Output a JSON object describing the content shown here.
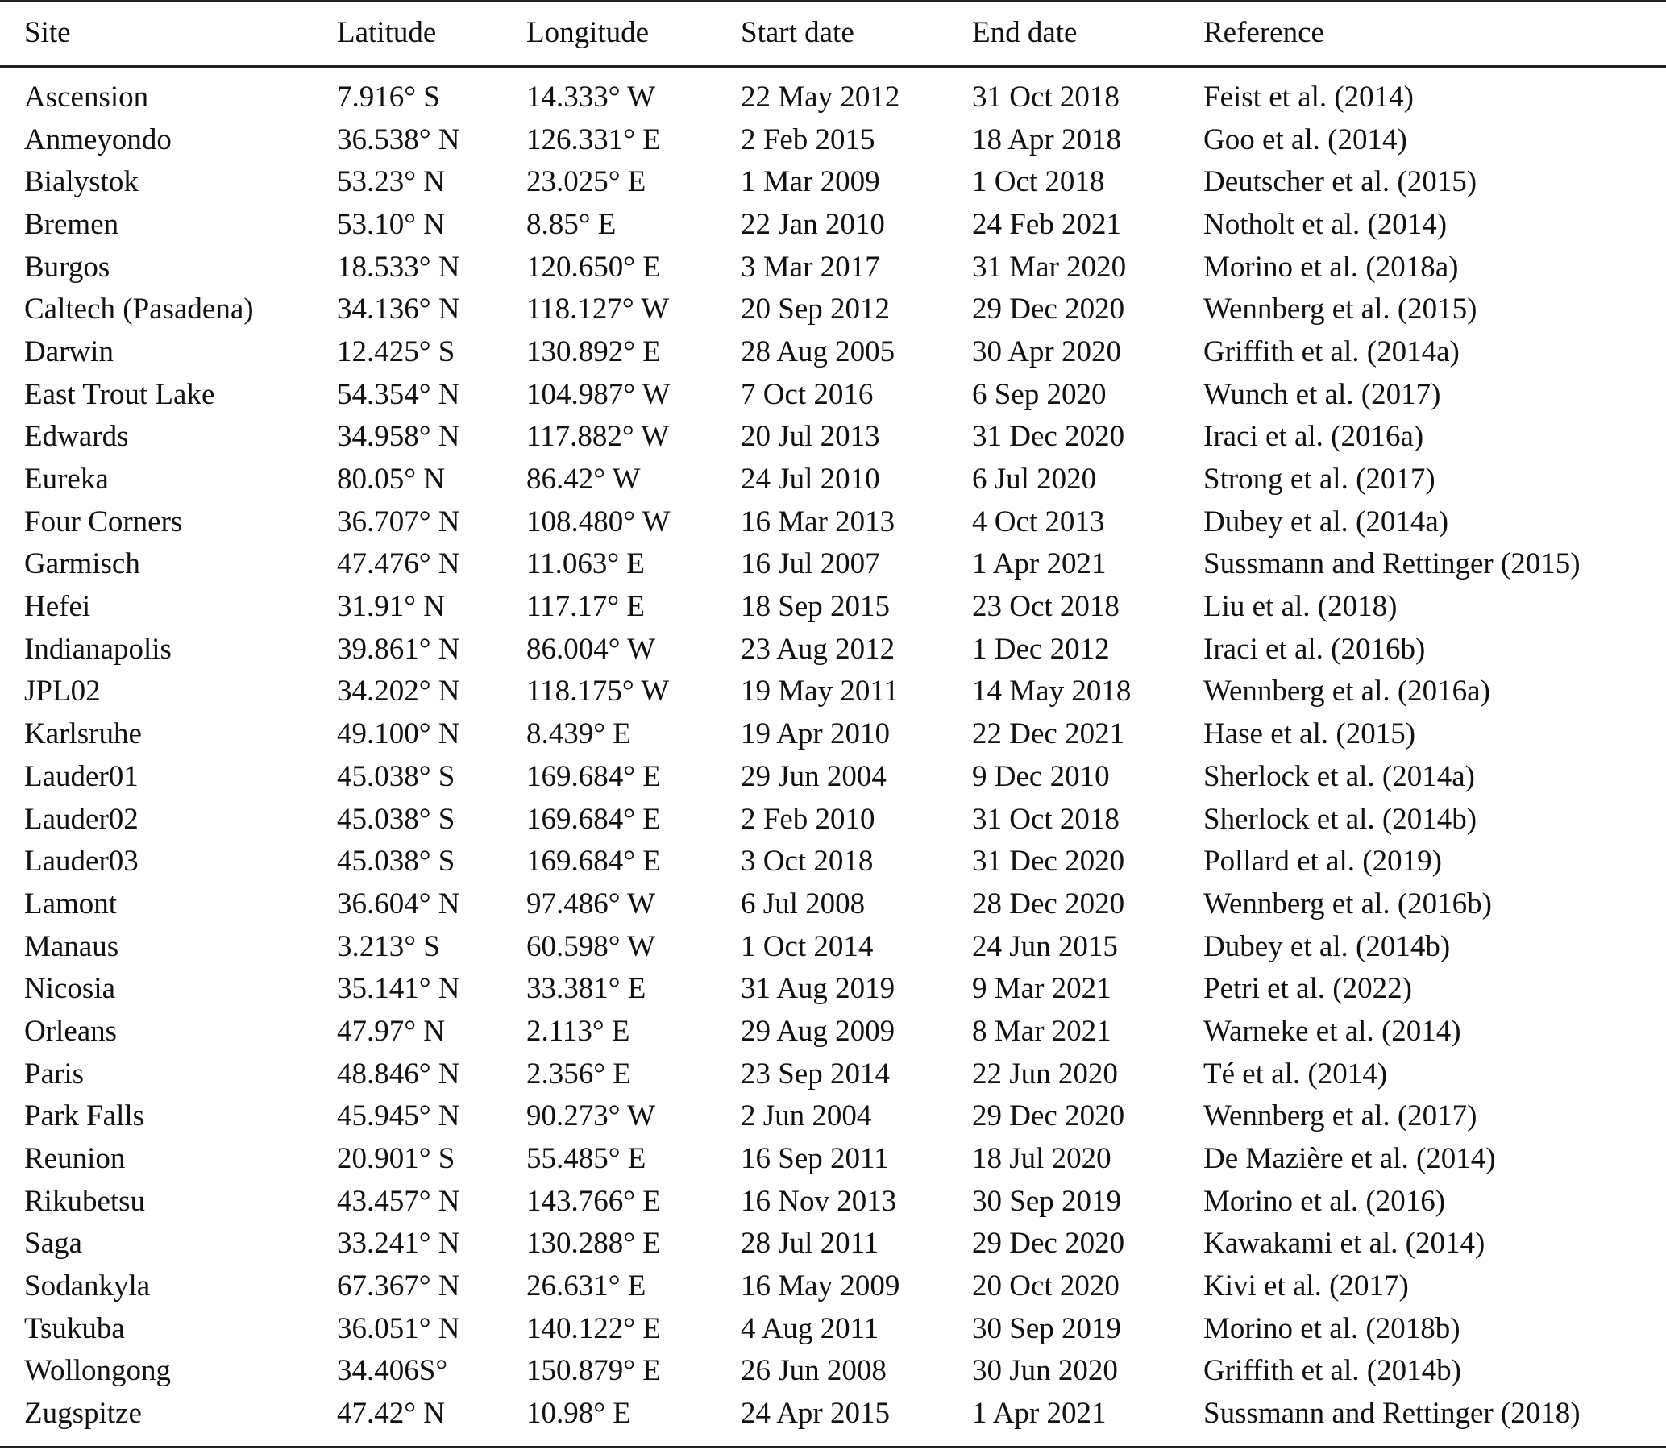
{
  "table": {
    "headers": [
      "Site",
      "Latitude",
      "Longitude",
      "Start date",
      "End date",
      "Reference"
    ],
    "rows": [
      [
        "Ascension",
        "7.916° S",
        "14.333° W",
        "22 May 2012",
        "31 Oct 2018",
        "Feist et al. (2014)"
      ],
      [
        "Anmeyondo",
        "36.538° N",
        "126.331° E",
        "2 Feb 2015",
        "18 Apr 2018",
        "Goo et al. (2014)"
      ],
      [
        "Bialystok",
        "53.23° N",
        "23.025° E",
        "1 Mar 2009",
        "1 Oct 2018",
        "Deutscher et al. (2015)"
      ],
      [
        "Bremen",
        "53.10° N",
        "8.85° E",
        "22 Jan 2010",
        "24 Feb 2021",
        "Notholt et al. (2014)"
      ],
      [
        "Burgos",
        "18.533° N",
        "120.650° E",
        "3 Mar 2017",
        "31 Mar 2020",
        "Morino et al. (2018a)"
      ],
      [
        "Caltech (Pasadena)",
        "34.136° N",
        "118.127° W",
        "20 Sep 2012",
        "29 Dec 2020",
        "Wennberg et al. (2015)"
      ],
      [
        "Darwin",
        "12.425° S",
        "130.892° E",
        "28 Aug 2005",
        "30 Apr 2020",
        "Griffith et al. (2014a)"
      ],
      [
        "East Trout Lake",
        "54.354° N",
        "104.987° W",
        "7 Oct 2016",
        "6 Sep 2020",
        "Wunch et al. (2017)"
      ],
      [
        "Edwards",
        "34.958° N",
        "117.882° W",
        "20 Jul 2013",
        "31 Dec 2020",
        "Iraci et al. (2016a)"
      ],
      [
        "Eureka",
        "80.05° N",
        "86.42° W",
        "24 Jul 2010",
        "6 Jul 2020",
        "Strong et al. (2017)"
      ],
      [
        "Four Corners",
        "36.707° N",
        "108.480° W",
        "16 Mar 2013",
        "4 Oct 2013",
        "Dubey et al. (2014a)"
      ],
      [
        "Garmisch",
        "47.476° N",
        "11.063° E",
        "16 Jul 2007",
        "1 Apr 2021",
        "Sussmann and Rettinger (2015)"
      ],
      [
        "Hefei",
        "31.91° N",
        "117.17° E",
        "18 Sep 2015",
        "23 Oct 2018",
        "Liu et al. (2018)"
      ],
      [
        "Indianapolis",
        "39.861° N",
        "86.004° W",
        "23 Aug 2012",
        "1 Dec 2012",
        "Iraci et al. (2016b)"
      ],
      [
        "JPL02",
        "34.202° N",
        "118.175° W",
        "19 May 2011",
        "14 May 2018",
        "Wennberg et al. (2016a)"
      ],
      [
        "Karlsruhe",
        "49.100° N",
        "8.439° E",
        "19 Apr 2010",
        "22 Dec 2021",
        "Hase et al. (2015)"
      ],
      [
        "Lauder01",
        "45.038° S",
        "169.684° E",
        "29 Jun 2004",
        "9 Dec 2010",
        "Sherlock et al. (2014a)"
      ],
      [
        "Lauder02",
        "45.038° S",
        "169.684° E",
        "2 Feb 2010",
        "31 Oct 2018",
        "Sherlock et al. (2014b)"
      ],
      [
        "Lauder03",
        "45.038° S",
        "169.684° E",
        "3 Oct 2018",
        "31 Dec 2020",
        "Pollard et al. (2019)"
      ],
      [
        "Lamont",
        "36.604° N",
        "97.486° W",
        "6 Jul 2008",
        "28 Dec 2020",
        "Wennberg et al. (2016b)"
      ],
      [
        "Manaus",
        "3.213° S",
        "60.598° W",
        "1 Oct 2014",
        "24 Jun 2015",
        "Dubey et al. (2014b)"
      ],
      [
        "Nicosia",
        "35.141° N",
        "33.381° E",
        "31 Aug 2019",
        "9 Mar 2021",
        "Petri et al. (2022)"
      ],
      [
        "Orleans",
        "47.97° N",
        "2.113° E",
        "29 Aug 2009",
        "8 Mar 2021",
        "Warneke et al. (2014)"
      ],
      [
        "Paris",
        "48.846° N",
        "2.356° E",
        "23 Sep 2014",
        "22 Jun 2020",
        "Té et al. (2014)"
      ],
      [
        "Park Falls",
        "45.945° N",
        "90.273° W",
        "2 Jun 2004",
        "29 Dec 2020",
        "Wennberg et al. (2017)"
      ],
      [
        "Reunion",
        "20.901° S",
        "55.485° E",
        "16 Sep 2011",
        "18 Jul 2020",
        "De Mazière et al. (2014)"
      ],
      [
        "Rikubetsu",
        "43.457° N",
        "143.766° E",
        "16 Nov 2013",
        "30 Sep 2019",
        "Morino et al. (2016)"
      ],
      [
        "Saga",
        "33.241° N",
        "130.288° E",
        "28 Jul 2011",
        "29 Dec 2020",
        "Kawakami et al. (2014)"
      ],
      [
        "Sodankyla",
        "67.367° N",
        "26.631° E",
        "16 May 2009",
        "20 Oct 2020",
        "Kivi et al. (2017)"
      ],
      [
        "Tsukuba",
        "36.051° N",
        "140.122° E",
        "4 Aug 2011",
        "30 Sep 2019",
        "Morino et al. (2018b)"
      ],
      [
        "Wollongong",
        "34.406S°",
        "150.879° E",
        "26 Jun 2008",
        "30 Jun 2020",
        "Griffith et al. (2014b)"
      ],
      [
        "Zugspitze",
        "47.42° N",
        "10.98° E",
        "24 Apr 2015",
        "1 Apr 2021",
        "Sussmann and Rettinger (2018)"
      ]
    ]
  }
}
